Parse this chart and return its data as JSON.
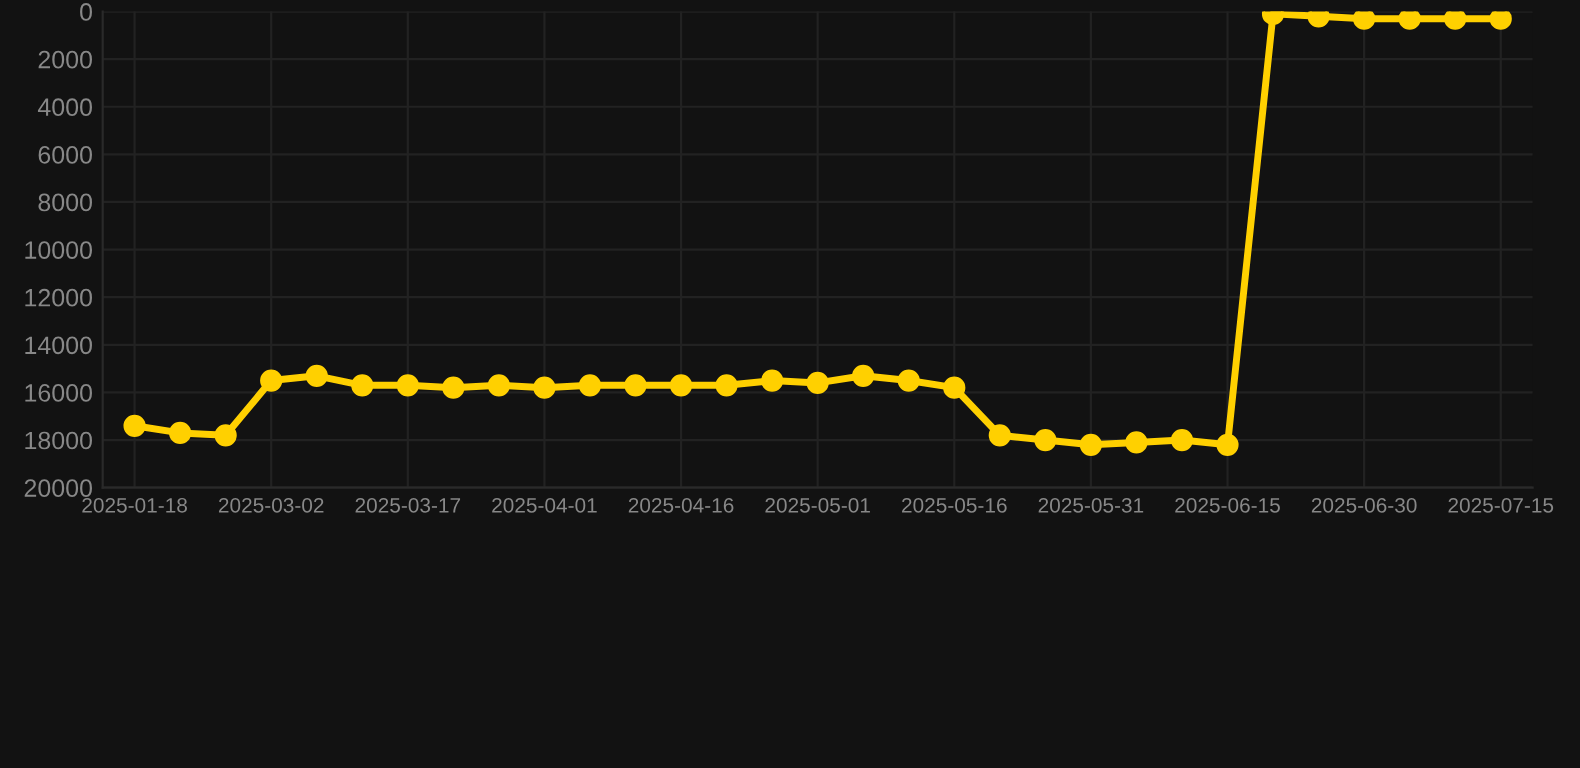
{
  "chart_data": {
    "type": "line",
    "categories": [
      "2025-01-18",
      null,
      null,
      "2025-03-02",
      null,
      null,
      "2025-03-17",
      null,
      null,
      "2025-04-01",
      null,
      null,
      "2025-04-16",
      null,
      null,
      "2025-05-01",
      null,
      null,
      "2025-05-16",
      null,
      null,
      "2025-05-31",
      null,
      null,
      "2025-06-15",
      null,
      null,
      "2025-06-30",
      null,
      null,
      "2025-07-15"
    ],
    "series": [
      {
        "color": "#ffd000",
        "values": [
          17400,
          17700,
          17800,
          15500,
          15300,
          15700,
          15700,
          15800,
          15700,
          15800,
          15700,
          15700,
          15700,
          15700,
          15500,
          15600,
          15300,
          15500,
          15800,
          17800,
          18000,
          18200,
          18100,
          18000,
          18200,
          100,
          200,
          300,
          300,
          300,
          300
        ]
      }
    ],
    "ylim": [
      20000,
      0
    ],
    "yticks": [
      0,
      2000,
      4000,
      6000,
      8000,
      10000,
      12000,
      14000,
      16000,
      18000,
      20000
    ],
    "grid": true,
    "marker": "circle",
    "line_style": "solid"
  }
}
